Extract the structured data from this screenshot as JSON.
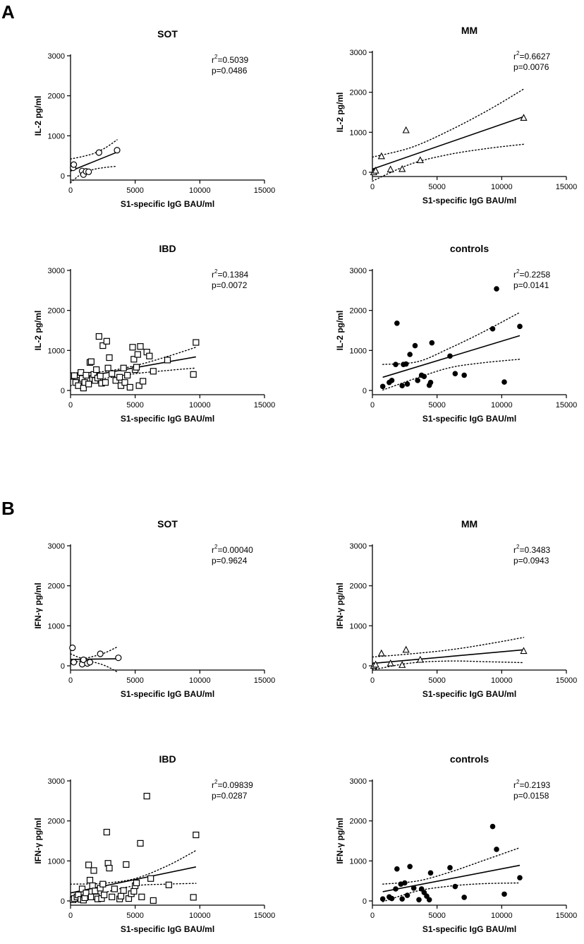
{
  "panels": [
    {
      "letter": "A"
    },
    {
      "letter": "B"
    }
  ],
  "chart_data": [
    {
      "type": "scatter",
      "title": "SOT",
      "xlabel": "S1-specific IgG BAU/ml",
      "ylabel": "IL-2 pg/ml",
      "xlim": [
        0,
        15000
      ],
      "ylim": [
        0,
        3000
      ],
      "xticks": [
        0,
        5000,
        10000,
        15000
      ],
      "yticks": [
        0,
        1000,
        2000,
        3000
      ],
      "r2_prefix": "r",
      "r2_sup": "2",
      "r2_value": "=0.5039",
      "p_text": "p=0.0486",
      "marker": "open-circle",
      "points": [
        [
          200,
          200
        ],
        [
          250,
          280
        ],
        [
          900,
          120
        ],
        [
          1000,
          30
        ],
        [
          1200,
          110
        ],
        [
          1400,
          100
        ],
        [
          2200,
          580
        ],
        [
          3600,
          640
        ]
      ],
      "fit": {
        "x": [
          0,
          3600
        ],
        "y": [
          120,
          590
        ]
      },
      "ci_upper": {
        "x": [
          0,
          900,
          1800,
          2700,
          3600
        ],
        "y": [
          420,
          480,
          560,
          700,
          900
        ]
      },
      "ci_lower": {
        "x": [
          0,
          900,
          1800,
          2700,
          3600
        ],
        "y": [
          -170,
          60,
          160,
          210,
          240
        ]
      }
    },
    {
      "type": "scatter",
      "title": "MM",
      "xlabel": "S1-specific IgG BAU/ml",
      "ylabel": "IL-2 pg/ml",
      "xlim": [
        0,
        15000
      ],
      "ylim": [
        0,
        3000
      ],
      "xticks": [
        0,
        5000,
        10000,
        15000
      ],
      "yticks": [
        0,
        1000,
        2000,
        3000
      ],
      "r2_prefix": "r",
      "r2_sup": "2",
      "r2_value": "=0.6627",
      "p_text": "p=0.0076",
      "marker": "open-triangle",
      "points": [
        [
          100,
          0
        ],
        [
          250,
          40
        ],
        [
          700,
          400
        ],
        [
          1400,
          70
        ],
        [
          2300,
          80
        ],
        [
          2600,
          1050
        ],
        [
          3700,
          300
        ],
        [
          11700,
          1360
        ]
      ],
      "fit": {
        "x": [
          0,
          11700
        ],
        "y": [
          80,
          1390
        ]
      },
      "ci_upper": {
        "x": [
          0,
          3000,
          6000,
          9000,
          11700
        ],
        "y": [
          380,
          620,
          1050,
          1560,
          2080
        ]
      },
      "ci_lower": {
        "x": [
          0,
          3000,
          6000,
          9000,
          11700
        ],
        "y": [
          -220,
          210,
          450,
          600,
          700
        ]
      }
    },
    {
      "type": "scatter",
      "title": "IBD",
      "xlabel": "S1-specific IgG BAU/ml",
      "ylabel": "IL-2 pg/ml",
      "xlim": [
        0,
        15000
      ],
      "ylim": [
        0,
        3000
      ],
      "xticks": [
        0,
        5000,
        10000,
        15000
      ],
      "yticks": [
        0,
        1000,
        2000,
        3000
      ],
      "r2_prefix": "r",
      "r2_sup": "2",
      "r2_value": "=0.1384",
      "p_text": "p=0.0072",
      "marker": "open-square",
      "points": [
        [
          300,
          370
        ],
        [
          400,
          200
        ],
        [
          600,
          120
        ],
        [
          800,
          450
        ],
        [
          900,
          300
        ],
        [
          1000,
          60
        ],
        [
          1100,
          200
        ],
        [
          1200,
          380
        ],
        [
          1400,
          160
        ],
        [
          1500,
          700
        ],
        [
          1600,
          720
        ],
        [
          1700,
          300
        ],
        [
          1800,
          400
        ],
        [
          1900,
          250
        ],
        [
          2000,
          520
        ],
        [
          2100,
          310
        ],
        [
          2200,
          1350
        ],
        [
          2300,
          360
        ],
        [
          2400,
          180
        ],
        [
          2500,
          1120
        ],
        [
          2700,
          200
        ],
        [
          2800,
          1230
        ],
        [
          2900,
          560
        ],
        [
          3000,
          820
        ],
        [
          3200,
          420
        ],
        [
          3500,
          250
        ],
        [
          3800,
          330
        ],
        [
          3900,
          120
        ],
        [
          4100,
          560
        ],
        [
          4200,
          200
        ],
        [
          4400,
          380
        ],
        [
          4600,
          80
        ],
        [
          4800,
          1080
        ],
        [
          4900,
          780
        ],
        [
          5000,
          520
        ],
        [
          5100,
          580
        ],
        [
          5200,
          900
        ],
        [
          5300,
          120
        ],
        [
          5400,
          1100
        ],
        [
          5600,
          230
        ],
        [
          5900,
          960
        ],
        [
          6100,
          860
        ],
        [
          6400,
          480
        ],
        [
          7500,
          760
        ],
        [
          9500,
          400
        ],
        [
          9700,
          1200
        ]
      ],
      "fit": {
        "x": [
          0,
          9700
        ],
        "y": [
          280,
          840
        ]
      },
      "ci_upper": {
        "x": [
          0,
          2500,
          5000,
          7500,
          9700
        ],
        "y": [
          440,
          470,
          620,
          850,
          1080
        ]
      },
      "ci_lower": {
        "x": [
          0,
          2500,
          5000,
          7500,
          9700
        ],
        "y": [
          120,
          290,
          420,
          500,
          560
        ]
      }
    },
    {
      "type": "scatter",
      "title": "controls",
      "xlabel": "S1-specific IgG BAU/ml",
      "ylabel": "IL-2 pg/ml",
      "xlim": [
        0,
        15000
      ],
      "ylim": [
        0,
        3000
      ],
      "xticks": [
        0,
        5000,
        10000,
        15000
      ],
      "yticks": [
        0,
        1000,
        2000,
        3000
      ],
      "r2_prefix": "r",
      "r2_sup": "2",
      "r2_value": "=0.2258",
      "p_text": "p=0.0141",
      "marker": "filled-circle",
      "points": [
        [
          800,
          100
        ],
        [
          1300,
          200
        ],
        [
          1500,
          250
        ],
        [
          1800,
          650
        ],
        [
          1900,
          1680
        ],
        [
          2300,
          120
        ],
        [
          2400,
          650
        ],
        [
          2600,
          660
        ],
        [
          2700,
          160
        ],
        [
          2900,
          900
        ],
        [
          3300,
          1120
        ],
        [
          3500,
          250
        ],
        [
          3800,
          380
        ],
        [
          4000,
          350
        ],
        [
          4400,
          130
        ],
        [
          4500,
          200
        ],
        [
          4600,
          1190
        ],
        [
          6000,
          860
        ],
        [
          6400,
          420
        ],
        [
          7100,
          380
        ],
        [
          9300,
          1540
        ],
        [
          9600,
          2540
        ],
        [
          10200,
          210
        ],
        [
          11400,
          1600
        ]
      ],
      "fit": {
        "x": [
          800,
          11400
        ],
        "y": [
          330,
          1370
        ]
      },
      "ci_upper": {
        "x": [
          800,
          3500,
          6000,
          8500,
          11400
        ],
        "y": [
          650,
          720,
          1060,
          1450,
          1950
        ]
      },
      "ci_lower": {
        "x": [
          800,
          3500,
          6000,
          8500,
          11400
        ],
        "y": [
          10,
          320,
          570,
          690,
          780
        ]
      }
    },
    {
      "type": "scatter",
      "title": "SOT",
      "xlabel": "S1-specific IgG BAU/ml",
      "ylabel": "IFN-γ pg/ml",
      "xlim": [
        0,
        15000
      ],
      "ylim": [
        0,
        3000
      ],
      "xticks": [
        0,
        5000,
        10000,
        15000
      ],
      "yticks": [
        0,
        1000,
        2000,
        3000
      ],
      "r2_prefix": "r",
      "r2_sup": "2",
      "r2_value": "=0.00040",
      "p_text": "p=0.9624",
      "marker": "open-circle",
      "points": [
        [
          150,
          450
        ],
        [
          250,
          90
        ],
        [
          900,
          40
        ],
        [
          1000,
          150
        ],
        [
          1300,
          60
        ],
        [
          1500,
          90
        ],
        [
          2300,
          300
        ],
        [
          3700,
          200
        ]
      ],
      "fit": {
        "x": [
          0,
          3600
        ],
        "y": [
          160,
          175
        ]
      },
      "ci_upper": {
        "x": [
          0,
          900,
          1800,
          2700,
          3600
        ],
        "y": [
          300,
          190,
          240,
          330,
          470
        ]
      },
      "ci_lower": {
        "x": [
          0,
          900,
          1800,
          2700,
          3600
        ],
        "y": [
          40,
          130,
          90,
          0,
          -150
        ]
      }
    },
    {
      "type": "scatter",
      "title": "MM",
      "xlabel": "S1-specific IgG BAU/ml",
      "ylabel": "IFN-γ pg/ml",
      "xlim": [
        0,
        15000
      ],
      "ylim": [
        0,
        3000
      ],
      "xticks": [
        0,
        5000,
        10000,
        15000
      ],
      "yticks": [
        0,
        1000,
        2000,
        3000
      ],
      "r2_prefix": "r",
      "r2_sup": "2",
      "r2_value": "=0.3483",
      "p_text": "p=0.0943",
      "marker": "open-triangle",
      "points": [
        [
          100,
          0
        ],
        [
          250,
          30
        ],
        [
          700,
          310
        ],
        [
          1400,
          60
        ],
        [
          2300,
          20
        ],
        [
          2600,
          400
        ],
        [
          3700,
          150
        ],
        [
          11700,
          370
        ]
      ],
      "fit": {
        "x": [
          0,
          11700
        ],
        "y": [
          60,
          400
        ]
      },
      "ci_upper": {
        "x": [
          0,
          3000,
          6000,
          9000,
          11700
        ],
        "y": [
          220,
          300,
          400,
          550,
          710
        ]
      },
      "ci_lower": {
        "x": [
          0,
          3000,
          6000,
          9000,
          11700
        ],
        "y": [
          -100,
          70,
          120,
          100,
          80
        ]
      }
    },
    {
      "type": "scatter",
      "title": "IBD",
      "xlabel": "S1-specific IgG BAU/ml",
      "ylabel": "IFN-γ pg/ml",
      "xlim": [
        0,
        15000
      ],
      "ylim": [
        0,
        3000
      ],
      "xticks": [
        0,
        5000,
        10000,
        15000
      ],
      "yticks": [
        0,
        1000,
        2000,
        3000
      ],
      "r2_prefix": "r",
      "r2_sup": "2",
      "r2_value": "=0.09839",
      "p_text": "p=0.0287",
      "marker": "open-square",
      "points": [
        [
          200,
          30
        ],
        [
          300,
          60
        ],
        [
          500,
          100
        ],
        [
          600,
          150
        ],
        [
          800,
          40
        ],
        [
          900,
          300
        ],
        [
          1000,
          20
        ],
        [
          1100,
          80
        ],
        [
          1200,
          200
        ],
        [
          1400,
          900
        ],
        [
          1500,
          520
        ],
        [
          1600,
          100
        ],
        [
          1700,
          380
        ],
        [
          1800,
          760
        ],
        [
          1900,
          250
        ],
        [
          2000,
          100
        ],
        [
          2100,
          50
        ],
        [
          2300,
          320
        ],
        [
          2400,
          60
        ],
        [
          2500,
          420
        ],
        [
          2600,
          150
        ],
        [
          2800,
          1720
        ],
        [
          2900,
          940
        ],
        [
          3000,
          820
        ],
        [
          3200,
          100
        ],
        [
          3400,
          300
        ],
        [
          3800,
          50
        ],
        [
          3900,
          120
        ],
        [
          4100,
          260
        ],
        [
          4300,
          910
        ],
        [
          4500,
          60
        ],
        [
          4700,
          180
        ],
        [
          4900,
          240
        ],
        [
          5000,
          380
        ],
        [
          5100,
          450
        ],
        [
          5400,
          1440
        ],
        [
          5500,
          100
        ],
        [
          5900,
          2620
        ],
        [
          6200,
          560
        ],
        [
          6400,
          10
        ],
        [
          7600,
          400
        ],
        [
          9500,
          90
        ],
        [
          9700,
          1650
        ]
      ],
      "fit": {
        "x": [
          0,
          9700
        ],
        "y": [
          200,
          850
        ]
      },
      "ci_upper": {
        "x": [
          0,
          2500,
          5000,
          7500,
          9700
        ],
        "y": [
          420,
          440,
          560,
          880,
          1260
        ]
      },
      "ci_lower": {
        "x": [
          0,
          2500,
          5000,
          7500,
          9700
        ],
        "y": [
          -20,
          200,
          380,
          420,
          440
        ]
      }
    },
    {
      "type": "scatter",
      "title": "controls",
      "xlabel": "S1-specific IgG BAU/ml",
      "ylabel": "IFN-γ pg/ml",
      "xlim": [
        0,
        15000
      ],
      "ylim": [
        0,
        3000
      ],
      "xticks": [
        0,
        5000,
        10000,
        15000
      ],
      "yticks": [
        0,
        1000,
        2000,
        3000
      ],
      "r2_prefix": "r",
      "r2_sup": "2",
      "r2_value": "=0.2193",
      "p_text": "p=0.0158",
      "marker": "filled-circle",
      "points": [
        [
          800,
          50
        ],
        [
          1300,
          100
        ],
        [
          1500,
          60
        ],
        [
          1800,
          300
        ],
        [
          1900,
          800
        ],
        [
          2200,
          420
        ],
        [
          2300,
          50
        ],
        [
          2500,
          450
        ],
        [
          2700,
          140
        ],
        [
          2900,
          860
        ],
        [
          3200,
          320
        ],
        [
          3600,
          30
        ],
        [
          3800,
          300
        ],
        [
          4000,
          210
        ],
        [
          4200,
          120
        ],
        [
          4400,
          30
        ],
        [
          4500,
          700
        ],
        [
          6000,
          830
        ],
        [
          6400,
          360
        ],
        [
          7100,
          90
        ],
        [
          9300,
          1860
        ],
        [
          9600,
          1290
        ],
        [
          10200,
          170
        ],
        [
          11400,
          580
        ]
      ],
      "fit": {
        "x": [
          800,
          11400
        ],
        "y": [
          230,
          890
        ]
      },
      "ci_upper": {
        "x": [
          800,
          3500,
          6000,
          8500,
          11400
        ],
        "y": [
          420,
          500,
          720,
          1000,
          1330
        ]
      },
      "ci_lower": {
        "x": [
          800,
          3500,
          6000,
          8500,
          11400
        ],
        "y": [
          -20,
          250,
          370,
          430,
          450
        ]
      }
    }
  ]
}
